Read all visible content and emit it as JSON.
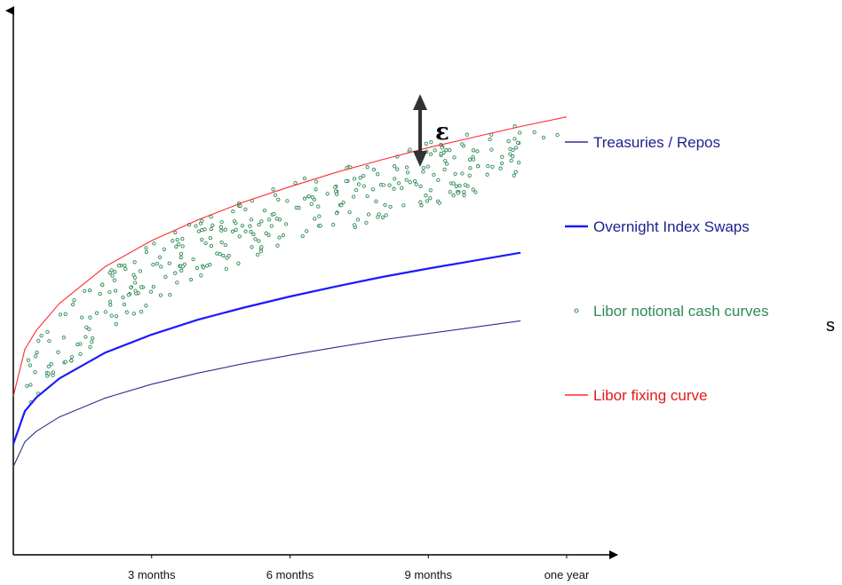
{
  "chart_data": {
    "type": "line",
    "title": "",
    "xlabel": "",
    "ylabel": "",
    "x_ticks": [
      "3 months",
      "6 months",
      "9 months",
      "one year"
    ],
    "xlim": [
      0,
      12
    ],
    "ylim": [
      0,
      1
    ],
    "grid": false,
    "legend_position": "right",
    "annotation": "ε",
    "stray_label": "s",
    "series": [
      {
        "name": "Treasuries / Repos",
        "style": "line",
        "color": "#2e2e8c",
        "x": [
          0,
          0.25,
          0.5,
          1,
          2,
          3,
          4,
          5,
          6,
          7,
          8,
          9,
          10,
          11
        ],
        "y": [
          0.167,
          0.214,
          0.234,
          0.261,
          0.297,
          0.323,
          0.344,
          0.362,
          0.378,
          0.393,
          0.407,
          0.419,
          0.431,
          0.443
        ]
      },
      {
        "name": "Overnight Index Swaps",
        "style": "line",
        "color": "#1a1aff",
        "x": [
          0,
          0.25,
          0.5,
          1,
          2,
          3,
          4,
          5,
          6,
          7,
          8,
          9,
          10,
          11
        ],
        "y": [
          0.21,
          0.272,
          0.298,
          0.334,
          0.383,
          0.417,
          0.445,
          0.468,
          0.489,
          0.508,
          0.526,
          0.542,
          0.557,
          0.572
        ]
      },
      {
        "name": "Libor notional cash curves",
        "style": "scatter",
        "color": "#2e8b57",
        "x": [
          0.25,
          0.5,
          1,
          2,
          3,
          4,
          5,
          6,
          7,
          8,
          9,
          10,
          11
        ],
        "y": [
          0.32,
          0.35,
          0.395,
          0.48,
          0.53,
          0.575,
          0.615,
          0.645,
          0.67,
          0.695,
          0.72,
          0.745,
          0.765
        ],
        "spread": 0.06
      },
      {
        "name": "Libor fixing curve",
        "style": "line",
        "color": "#ff2a2a",
        "x": [
          0,
          0.25,
          0.5,
          1,
          2,
          3,
          4,
          5,
          6,
          7,
          8,
          9,
          10,
          11,
          12
        ],
        "y": [
          0.3,
          0.389,
          0.425,
          0.476,
          0.546,
          0.595,
          0.634,
          0.668,
          0.697,
          0.724,
          0.748,
          0.771,
          0.791,
          0.811,
          0.829
        ]
      }
    ]
  }
}
